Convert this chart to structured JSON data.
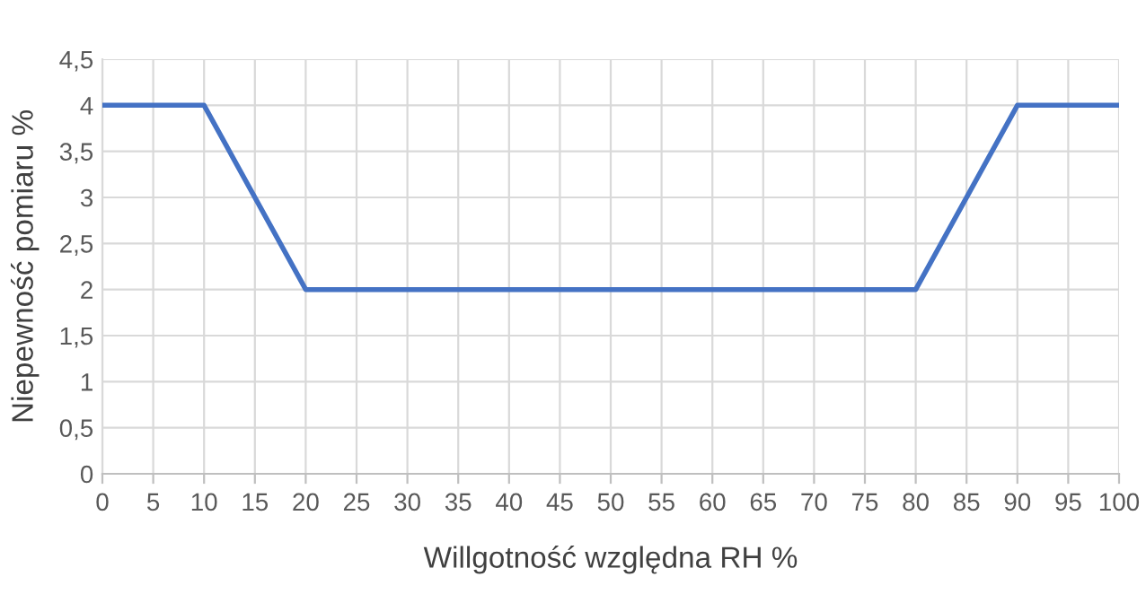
{
  "chart_data": {
    "type": "line",
    "xlabel": "Willgotność względna RH %",
    "ylabel": "Niepewność pomiaru %",
    "x": [
      0,
      10,
      20,
      80,
      90,
      100
    ],
    "series": [
      {
        "color": "#4472c4",
        "values": [
          4,
          4,
          2,
          2,
          4,
          4
        ]
      }
    ],
    "xlim": [
      0,
      100
    ],
    "xticks": [
      0,
      5,
      10,
      15,
      20,
      25,
      30,
      35,
      40,
      45,
      50,
      55,
      60,
      65,
      70,
      75,
      80,
      85,
      90,
      95,
      100
    ],
    "ylim": [
      0,
      4.5
    ],
    "yticks": [
      0,
      {
        "value": 0.5,
        "label": "0,5"
      },
      1,
      {
        "value": 1.5,
        "label": "1,5"
      },
      2,
      {
        "value": 2.5,
        "label": "2,5"
      },
      3,
      {
        "value": 3.5,
        "label": "3,5"
      },
      4,
      {
        "value": 4.5,
        "label": "4,5"
      }
    ],
    "grid": true,
    "marker": "none",
    "line_style": "solid"
  }
}
